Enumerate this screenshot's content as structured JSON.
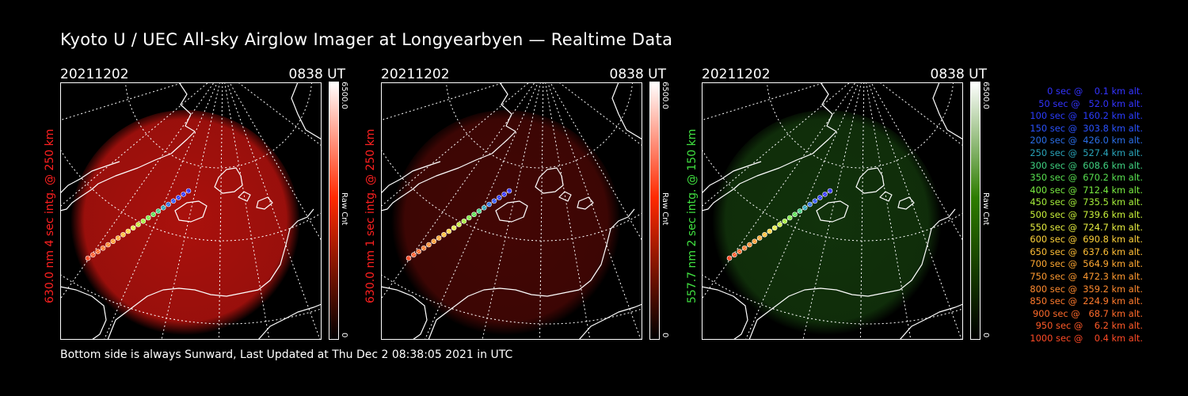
{
  "title": "Kyoto U / UEC All-sky Airglow Imager at Longyearbyen — Realtime Data",
  "footer": "Bottom side is always Sunward, Last Updated at Thu Dec  2 08:38:05 2021 in UTC",
  "panels": [
    {
      "date": "20211202",
      "time": "0838 UT",
      "side_label": "630.0 nm  4 sec intg. @ 250 km",
      "label_color": "#ff2020",
      "cbar_max": "6500.0",
      "cbar_label": "Raw Cnt",
      "cbar_min": "0",
      "cbar_color": "#ff2a00",
      "glow_color": "#c8140f",
      "glow_opacity": 0.85
    },
    {
      "date": "20211202",
      "time": "0838 UT",
      "side_label": "630.0 nm  1 sec intg. @ 250 km",
      "label_color": "#ff2020",
      "cbar_max": "6500.0",
      "cbar_label": "Raw Cnt",
      "cbar_min": "0",
      "cbar_color": "#ff2a00",
      "glow_color": "#7a0c08",
      "glow_opacity": 0.55
    },
    {
      "date": "20211202",
      "time": "0838 UT",
      "side_label": "557.7 nm  2 sec intg. @ 150 km",
      "label_color": "#40e040",
      "cbar_max": "6500.0",
      "cbar_label": "Raw Cnt",
      "cbar_min": "0",
      "cbar_color": "#2e7d00",
      "glow_color": "#1f5b14",
      "glow_opacity": 0.55
    }
  ],
  "legend": [
    {
      "text": "   0 sec @    0.1 km alt.",
      "color": "#3333ff"
    },
    {
      "text": "  50 sec @   52.0 km alt.",
      "color": "#3333ff"
    },
    {
      "text": " 100 sec @  160.2 km alt.",
      "color": "#2a3cff"
    },
    {
      "text": " 150 sec @  303.8 km alt.",
      "color": "#2a52ff"
    },
    {
      "text": " 200 sec @  426.0 km alt.",
      "color": "#2a6ee6"
    },
    {
      "text": " 250 sec @  527.4 km alt.",
      "color": "#29a3b8"
    },
    {
      "text": " 300 sec @  608.6 km alt.",
      "color": "#3fd080"
    },
    {
      "text": " 350 sec @  670.2 km alt.",
      "color": "#58e050"
    },
    {
      "text": " 400 sec @  712.4 km alt.",
      "color": "#78ea40"
    },
    {
      "text": " 450 sec @  735.5 km alt.",
      "color": "#a5ee3a"
    },
    {
      "text": " 500 sec @  739.6 km alt.",
      "color": "#c8f03a"
    },
    {
      "text": " 550 sec @  724.7 km alt.",
      "color": "#e6ee40"
    },
    {
      "text": " 600 sec @  690.8 km alt.",
      "color": "#ffd23a"
    },
    {
      "text": " 650 sec @  637.6 km alt.",
      "color": "#ffbe36"
    },
    {
      "text": " 700 sec @  564.9 km alt.",
      "color": "#ffa832"
    },
    {
      "text": " 750 sec @  472.3 km alt.",
      "color": "#ff9a30"
    },
    {
      "text": " 800 sec @  359.2 km alt.",
      "color": "#ff8a2e"
    },
    {
      "text": " 850 sec @  224.9 km alt.",
      "color": "#ff7a2c"
    },
    {
      "text": " 900 sec @   68.7 km alt.",
      "color": "#ff6a2a"
    },
    {
      "text": " 950 sec @    6.2 km alt.",
      "color": "#ff5a28"
    },
    {
      "text": "1000 sec @    0.4 km alt.",
      "color": "#ff4a26"
    }
  ]
}
